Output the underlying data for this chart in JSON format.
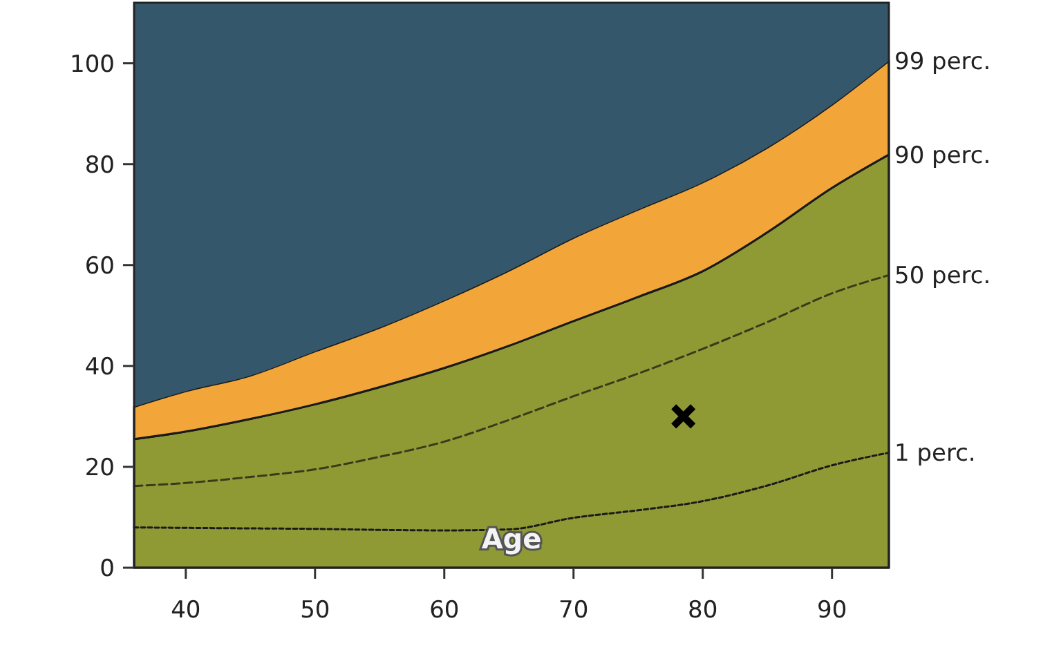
{
  "chart_data": {
    "type": "area",
    "xlabel": "Age",
    "stacked": true,
    "x": [
      36,
      40,
      45,
      50,
      55,
      60,
      65,
      70,
      75,
      80,
      85,
      90,
      94.4
    ],
    "series": [
      {
        "name": "90 perc.",
        "color": "#8f9a34",
        "line_style": "solid",
        "values": [
          25.5,
          27,
          29.5,
          32.4,
          35.8,
          39.6,
          44,
          48.9,
          53.7,
          58.8,
          66.5,
          75.3,
          81.9
        ]
      },
      {
        "name": "99 perc.",
        "color": "#f2a63a",
        "line_style": "solid",
        "values": [
          6.4,
          8,
          8.6,
          10.5,
          11.8,
          13.4,
          14.9,
          16.5,
          17.3,
          17.6,
          16.8,
          16.5,
          18.6
        ]
      },
      {
        "color": "#34576b",
        "values": [
          80.1,
          77,
          73.9,
          69.1,
          64.4,
          59,
          53.1,
          46.6,
          41,
          35.6,
          28.7,
          20.2,
          11.5
        ]
      },
      {
        "type": "line",
        "name": "50 perc.",
        "color": "#3a3a1a",
        "line_style": "dashed",
        "values": [
          16.2,
          16.8,
          18,
          19.5,
          22,
          25,
          29.3,
          34,
          38.5,
          43.4,
          48.7,
          54.4,
          58
        ]
      },
      {
        "type": "line",
        "name": "1 perc.",
        "color": "#1a1a1a",
        "line_style": "dotted",
        "values": [
          8,
          7.9,
          7.8,
          7.7,
          7.5,
          7.4,
          7.6,
          9.9,
          11.4,
          13.2,
          16.3,
          20.3,
          22.8
        ]
      },
      {
        "type": "scatter",
        "color": "#000000",
        "marker": "cross",
        "x": [
          78.5
        ],
        "values": [
          30
        ]
      }
    ],
    "xlim": [
      36,
      94.4
    ],
    "ylim": [
      0,
      112
    ],
    "xticks": [
      40,
      50,
      60,
      70,
      80,
      90
    ],
    "yticks": [
      0,
      20,
      40,
      60,
      80,
      100
    ],
    "grid": false
  }
}
